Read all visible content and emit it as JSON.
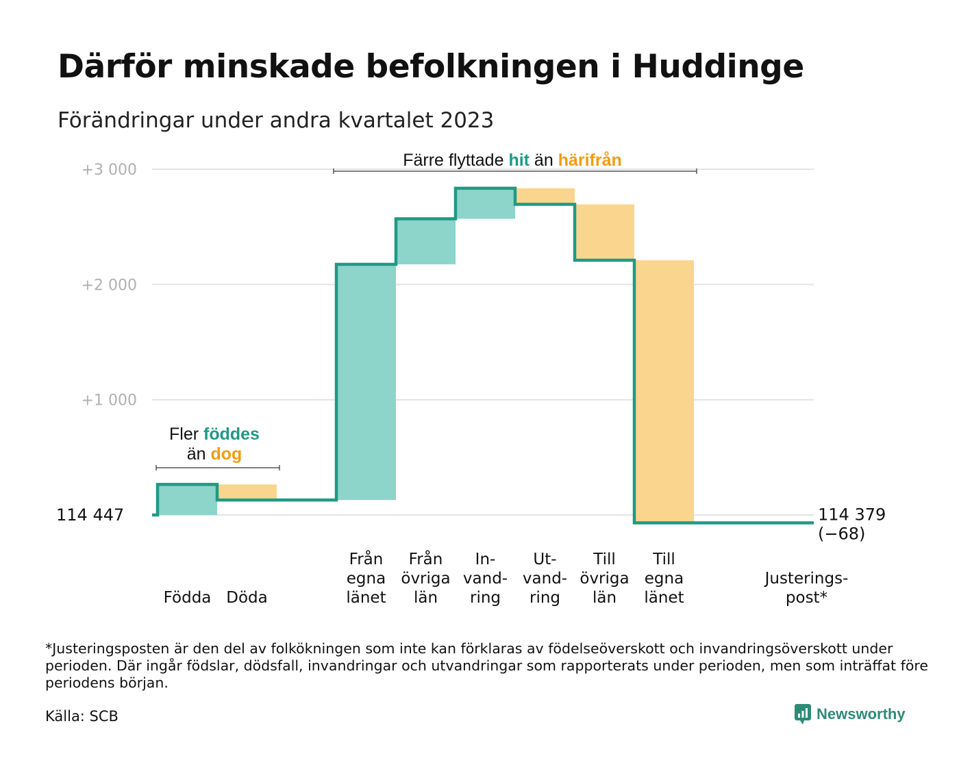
{
  "title": "Därför minskade befolkningen i Huddinge",
  "subtitle": "Förändringar under andra kvartalet 2023",
  "footnote": "*Justeringsposten är den del av folkökningen som inte kan förklaras av födelseöverskott och invandringsöverskott under perioden. Där ingår födslar, dödsfall, invandringar och utvandringar som rapporterats under perioden, men som inträffat före periodens början.",
  "source": "Källa: SCB",
  "brand": "Newsworthy",
  "colors": {
    "increase_fill": "#8dd4ca",
    "decrease_fill": "#fad58d",
    "line": "#1f9a85",
    "highlight_teal": "#1f9a85",
    "highlight_orange": "#f39c12",
    "grid": "#e3e3e3",
    "tick_text": "#b0b0b0"
  },
  "chart_data": {
    "type": "waterfall",
    "baseline": 114447,
    "end_value": 114379,
    "end_label": "114 379",
    "end_change_label": "(−68)",
    "start_label": "114   447",
    "y_ticks": [
      {
        "value": 1000,
        "label": "+1   000"
      },
      {
        "value": 2000,
        "label": "+2   000"
      },
      {
        "value": 3000,
        "label": "+3   000"
      }
    ],
    "ylim": [
      -80,
      3050
    ],
    "steps": [
      {
        "label_lines": [
          "Födda"
        ],
        "change": 265,
        "kind": "increase"
      },
      {
        "label_lines": [
          "Döda"
        ],
        "change": -135,
        "kind": "decrease"
      },
      {
        "label_lines": [],
        "change": 0,
        "kind": "none"
      },
      {
        "label_lines": [
          "Från",
          "egna",
          "länet"
        ],
        "change": 2045,
        "kind": "increase"
      },
      {
        "label_lines": [
          "Från",
          "övriga",
          "län"
        ],
        "change": 395,
        "kind": "increase"
      },
      {
        "label_lines": [
          "In-",
          "vand-",
          "ring"
        ],
        "change": 265,
        "kind": "increase"
      },
      {
        "label_lines": [
          "Ut-",
          "vand-",
          "ring"
        ],
        "change": -140,
        "kind": "decrease"
      },
      {
        "label_lines": [
          "Till",
          "övriga",
          "län"
        ],
        "change": -485,
        "kind": "decrease"
      },
      {
        "label_lines": [
          "Till",
          "egna",
          "länet"
        ],
        "change": -2278,
        "kind": "decrease"
      },
      {
        "label_lines": [],
        "change": 0,
        "kind": "none"
      },
      {
        "label_lines": [
          "Justerings-",
          "post*"
        ],
        "change": 0,
        "kind": "none"
      }
    ],
    "annotations": [
      {
        "lines": [
          [
            {
              "text": "Fler ",
              "style": "plain"
            },
            {
              "text": "föddes",
              "style": "teal"
            }
          ],
          [
            {
              "text": "än ",
              "style": "plain"
            },
            {
              "text": "dog",
              "style": "orange"
            }
          ]
        ]
      },
      {
        "lines": [
          [
            {
              "text": "Färre flyttade ",
              "style": "plain"
            },
            {
              "text": "hit",
              "style": "teal"
            },
            {
              "text": " än ",
              "style": "plain"
            },
            {
              "text": "härifrån",
              "style": "orange"
            }
          ]
        ]
      }
    ]
  }
}
